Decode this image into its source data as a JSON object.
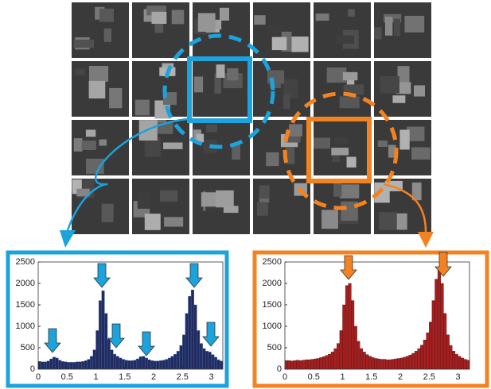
{
  "chart_data": [
    {
      "type": "histogram",
      "color": "#232a5e",
      "edge": "#3a6fb0",
      "xlim": [
        0,
        3.2
      ],
      "ylim": [
        0,
        2500
      ],
      "xticks": [
        0,
        0.5,
        1,
        1.5,
        2,
        2.5,
        3
      ],
      "yticks": [
        0,
        500,
        1000,
        1500,
        2000,
        2500
      ],
      "bins": [
        0,
        0.05,
        0.1,
        0.15,
        0.2,
        0.25,
        0.3,
        0.35,
        0.4,
        0.45,
        0.5,
        0.55,
        0.6,
        0.65,
        0.7,
        0.75,
        0.8,
        0.85,
        0.9,
        0.95,
        1,
        1.05,
        1.1,
        1.15,
        1.2,
        1.25,
        1.3,
        1.35,
        1.4,
        1.45,
        1.5,
        1.55,
        1.6,
        1.65,
        1.7,
        1.75,
        1.8,
        1.85,
        1.9,
        1.95,
        2,
        2.05,
        2.1,
        2.15,
        2.2,
        2.25,
        2.3,
        2.35,
        2.4,
        2.45,
        2.5,
        2.55,
        2.6,
        2.65,
        2.7,
        2.75,
        2.8,
        2.85,
        2.9,
        2.95,
        3,
        3.05,
        3.1,
        3.15,
        3.2
      ],
      "values": [
        180,
        170,
        170,
        190,
        240,
        280,
        260,
        210,
        180,
        170,
        160,
        160,
        160,
        170,
        170,
        180,
        200,
        230,
        300,
        450,
        900,
        1600,
        1830,
        1300,
        700,
        450,
        350,
        300,
        260,
        230,
        210,
        200,
        200,
        210,
        240,
        290,
        300,
        260,
        220,
        200,
        190,
        190,
        200,
        210,
        230,
        260,
        300,
        350,
        420,
        550,
        800,
        1300,
        1700,
        1850,
        1500,
        900,
        600,
        480,
        420,
        400,
        340,
        280,
        220,
        190
      ]
    },
    {
      "type": "histogram",
      "color": "#a32020",
      "edge": "#5a1010",
      "xlim": [
        0,
        3.2
      ],
      "ylim": [
        0,
        2500
      ],
      "xticks": [
        0,
        0.5,
        1,
        1.5,
        2,
        2.5,
        3
      ],
      "yticks": [
        0,
        500,
        1000,
        1500,
        2000,
        2500
      ],
      "bins": [
        0,
        0.05,
        0.1,
        0.15,
        0.2,
        0.25,
        0.3,
        0.35,
        0.4,
        0.45,
        0.5,
        0.55,
        0.6,
        0.65,
        0.7,
        0.75,
        0.8,
        0.85,
        0.9,
        0.95,
        1,
        1.05,
        1.1,
        1.15,
        1.2,
        1.25,
        1.3,
        1.35,
        1.4,
        1.45,
        1.5,
        1.55,
        1.6,
        1.65,
        1.7,
        1.75,
        1.8,
        1.85,
        1.9,
        1.95,
        2,
        2.05,
        2.1,
        2.15,
        2.2,
        2.25,
        2.3,
        2.35,
        2.4,
        2.45,
        2.5,
        2.55,
        2.6,
        2.65,
        2.7,
        2.75,
        2.8,
        2.85,
        2.9,
        2.95,
        3,
        3.05,
        3.1,
        3.15,
        3.2
      ],
      "values": [
        200,
        200,
        190,
        200,
        210,
        200,
        210,
        220,
        220,
        230,
        240,
        250,
        270,
        290,
        320,
        350,
        400,
        480,
        600,
        900,
        1500,
        1950,
        2000,
        1600,
        1000,
        650,
        480,
        400,
        340,
        300,
        270,
        250,
        240,
        230,
        230,
        220,
        220,
        230,
        240,
        250,
        260,
        280,
        300,
        330,
        370,
        420,
        480,
        560,
        680,
        850,
        1100,
        1600,
        2100,
        2330,
        2000,
        1300,
        800,
        550,
        420,
        350,
        300,
        260,
        230,
        210
      ]
    }
  ]
}
